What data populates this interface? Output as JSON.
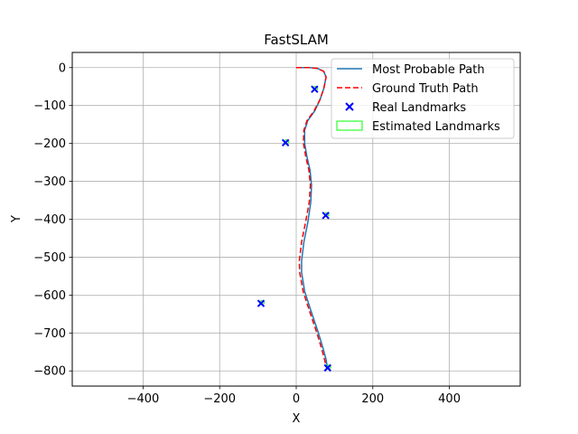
{
  "chart_data": {
    "type": "line",
    "title": "FastSLAM",
    "xlabel": "X",
    "ylabel": "Y",
    "xlim": [
      -585,
      585
    ],
    "ylim": [
      -840,
      40
    ],
    "xticks": [
      -400,
      -200,
      0,
      200,
      400
    ],
    "yticks": [
      0,
      -100,
      -200,
      -300,
      -400,
      -500,
      -600,
      -700,
      -800
    ],
    "xtick_labels": [
      "−400",
      "−200",
      "0",
      "200",
      "400"
    ],
    "ytick_labels": [
      "0",
      "−100",
      "−200",
      "−300",
      "−400",
      "−500",
      "−600",
      "−700",
      "−800"
    ],
    "grid": true,
    "legend_position": "top-right",
    "series": [
      {
        "name": "Most Probable Path",
        "kind": "line",
        "color": "#1f77b4",
        "style": "solid",
        "x": [
          0,
          15,
          35,
          55,
          72,
          78,
          72,
          62,
          48,
          30,
          22,
          22,
          28,
          36,
          40,
          38,
          30,
          20,
          14,
          14,
          22,
          38,
          58,
          70,
          78,
          82
        ],
        "y": [
          0,
          0,
          0,
          -2,
          -10,
          -25,
          -55,
          -85,
          -115,
          -140,
          -165,
          -200,
          -235,
          -270,
          -310,
          -355,
          -410,
          -460,
          -510,
          -540,
          -590,
          -640,
          -700,
          -740,
          -770,
          -795
        ]
      },
      {
        "name": "Ground Truth Path",
        "kind": "line",
        "color": "#ff0000",
        "style": "dashed",
        "x": [
          0,
          15,
          35,
          55,
          72,
          78,
          72,
          62,
          46,
          28,
          20,
          19,
          25,
          33,
          37,
          34,
          24,
          14,
          8,
          9,
          18,
          34,
          54,
          66,
          74,
          80
        ],
        "y": [
          0,
          0,
          0,
          -2,
          -10,
          -25,
          -55,
          -85,
          -115,
          -140,
          -165,
          -200,
          -235,
          -270,
          -310,
          -355,
          -410,
          -460,
          -510,
          -540,
          -590,
          -640,
          -700,
          -740,
          -770,
          -795
        ]
      },
      {
        "name": "Real Landmarks",
        "kind": "scatter",
        "marker": "x",
        "color": "#0000ff",
        "x": [
          48,
          -28,
          77,
          -92,
          82
        ],
        "y": [
          -57,
          -198,
          -390,
          -622,
          -792
        ]
      },
      {
        "name": "Estimated Landmarks",
        "kind": "ellipse",
        "color": "#00ff00",
        "x": [
          48,
          -28,
          77,
          -92,
          82
        ],
        "y": [
          -57,
          -198,
          -390,
          -622,
          -792
        ]
      }
    ]
  }
}
